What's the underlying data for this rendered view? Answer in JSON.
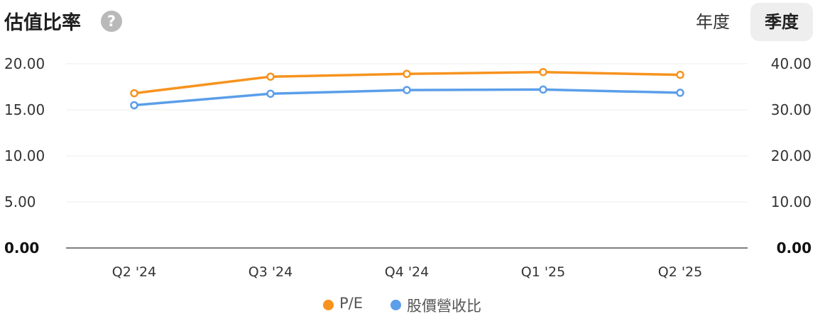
{
  "header": {
    "title": "估值比率",
    "help_icon": "?",
    "tabs": [
      {
        "label": "年度",
        "active": false
      },
      {
        "label": "季度",
        "active": true
      }
    ]
  },
  "colors": {
    "pe": "#f7931e",
    "ps": "#5b9ee9",
    "grid": "#ececec",
    "axis": "#555555"
  },
  "chart_data": {
    "type": "line",
    "categories": [
      "Q2 '24",
      "Q3 '24",
      "Q4 '24",
      "Q1 '25",
      "Q2 '25"
    ],
    "series": [
      {
        "name": "P/E",
        "axis": "left",
        "values": [
          16.8,
          18.6,
          18.9,
          19.1,
          18.8
        ]
      },
      {
        "name": "股價營收比",
        "axis": "right",
        "values": [
          31.0,
          33.5,
          34.3,
          34.4,
          33.7
        ]
      }
    ],
    "y_left": {
      "ticks": [
        "20.00",
        "15.00",
        "10.00",
        "5.00",
        "0.00"
      ],
      "range": [
        0,
        20
      ]
    },
    "y_right": {
      "ticks": [
        "40.00",
        "30.00",
        "20.00",
        "10.00",
        "0.00"
      ],
      "range": [
        0,
        40
      ]
    },
    "grid": true,
    "legend": "bottom"
  }
}
